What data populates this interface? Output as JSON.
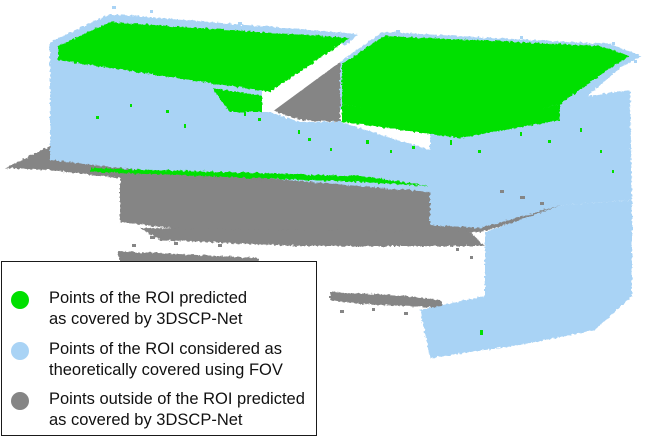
{
  "colors": {
    "predicted_roi": "#00e000",
    "theoretical_roi": "#a9d3f5",
    "outside_roi": "#858585"
  },
  "legend": {
    "items": [
      {
        "color_key": "predicted_roi",
        "line1": "Points of the ROI predicted",
        "line2": "as covered by 3DSCP-Net"
      },
      {
        "color_key": "theoretical_roi",
        "line1": "Points of the ROI considered as",
        "line2": "theoretically covered using FOV"
      },
      {
        "color_key": "outside_roi",
        "line1": "Points outside of the ROI predicted",
        "line2": "as covered by 3DSCP-Net"
      }
    ]
  }
}
